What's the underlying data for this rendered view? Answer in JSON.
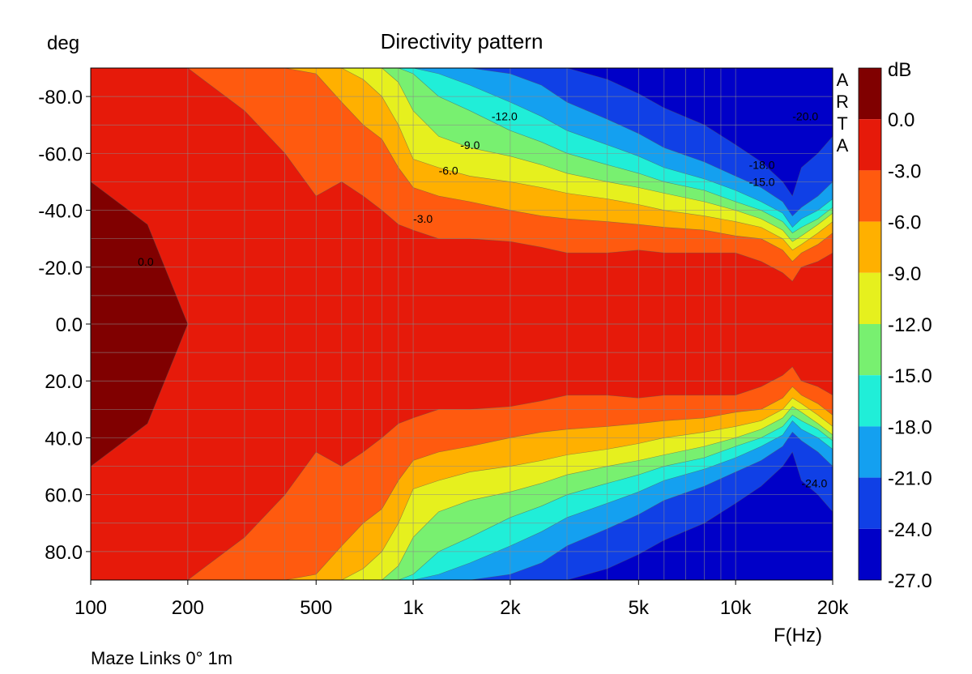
{
  "chart_data": {
    "type": "heatmap",
    "title": "Directivity pattern",
    "xlabel": "F(Hz)",
    "ylabel": "deg",
    "x_scale": "log",
    "xlim": [
      100,
      20000
    ],
    "ylim": [
      -90,
      90
    ],
    "x_ticks": [
      {
        "value": 100,
        "label": "100"
      },
      {
        "value": 200,
        "label": "200"
      },
      {
        "value": 500,
        "label": "500"
      },
      {
        "value": 1000,
        "label": "1k"
      },
      {
        "value": 2000,
        "label": "2k"
      },
      {
        "value": 5000,
        "label": "5k"
      },
      {
        "value": 10000,
        "label": "10k"
      },
      {
        "value": 20000,
        "label": "20k"
      }
    ],
    "y_ticks": [
      {
        "value": -80,
        "label": "-80.0"
      },
      {
        "value": -60,
        "label": "-60.0"
      },
      {
        "value": -40,
        "label": "-40.0"
      },
      {
        "value": -20,
        "label": "-20.0"
      },
      {
        "value": 0,
        "label": "0.0"
      },
      {
        "value": 20,
        "label": "20.0"
      },
      {
        "value": 40,
        "label": "40.0"
      },
      {
        "value": 60,
        "label": "60.0"
      },
      {
        "value": 80,
        "label": "80.0"
      }
    ],
    "grid": true,
    "colorbar": {
      "unit": "dB",
      "bands": [
        {
          "label": "0.0",
          "color": "#800000"
        },
        {
          "label": "-3.0",
          "color": "#e61a0a"
        },
        {
          "label": "-6.0",
          "color": "#ff5a0f"
        },
        {
          "label": "-9.0",
          "color": "#ffb000"
        },
        {
          "label": "-12.0",
          "color": "#e6f01e"
        },
        {
          "label": "-15.0",
          "color": "#78f070"
        },
        {
          "label": "-18.0",
          "color": "#20eed8"
        },
        {
          "label": "-21.0",
          "color": "#14a0f0"
        },
        {
          "label": "-24.0",
          "color": "#1040e6"
        },
        {
          "label": "-27.0",
          "color": "#0000c8"
        }
      ]
    },
    "band_levels_db": [
      0,
      -3,
      -6,
      -9,
      -12,
      -15,
      -18,
      -21,
      -24,
      -27
    ],
    "edge_angle_deg": {
      "freq_hz": [
        100,
        150,
        200,
        300,
        400,
        500,
        600,
        700,
        800,
        900,
        1000,
        1200,
        1500,
        2000,
        2500,
        3000,
        4000,
        5000,
        6000,
        8000,
        10000,
        12000,
        14000,
        15000,
        16000,
        18000,
        20000
      ],
      "edge_-0": [
        50,
        35,
        0,
        0,
        0,
        0,
        0,
        0,
        0,
        0,
        0,
        0,
        0,
        0,
        0,
        0,
        0,
        0,
        0,
        0,
        0,
        0,
        0,
        0,
        0,
        0,
        0
      ],
      "edge_-3": [
        90,
        90,
        90,
        75,
        60,
        45,
        50,
        45,
        40,
        35,
        33,
        30,
        30,
        29,
        27,
        25,
        25,
        26,
        25,
        25,
        25,
        22,
        18,
        15,
        20,
        22,
        25
      ],
      "edge_-6": [
        90,
        90,
        90,
        90,
        90,
        88,
        78,
        70,
        65,
        55,
        48,
        45,
        43,
        40,
        38,
        37,
        36,
        35,
        34,
        33,
        31,
        30,
        26,
        22,
        25,
        28,
        32
      ],
      "edge_-9": [
        90,
        90,
        90,
        90,
        90,
        90,
        90,
        86,
        80,
        70,
        58,
        55,
        52,
        50,
        48,
        46,
        44,
        42,
        40,
        38,
        36,
        34,
        30,
        26,
        28,
        32,
        36
      ],
      "edge_-12": [
        90,
        90,
        90,
        90,
        90,
        90,
        90,
        90,
        90,
        85,
        75,
        66,
        62,
        59,
        56,
        53,
        50,
        48,
        46,
        43,
        40,
        37,
        33,
        29,
        31,
        35,
        39
      ],
      "edge_-15": [
        90,
        90,
        90,
        90,
        90,
        90,
        90,
        90,
        90,
        90,
        88,
        80,
        75,
        68,
        64,
        60,
        56,
        53,
        50,
        47,
        43,
        40,
        36,
        32,
        34,
        37,
        41
      ],
      "edge_-18": [
        90,
        90,
        90,
        90,
        90,
        90,
        90,
        90,
        90,
        90,
        90,
        88,
        84,
        78,
        73,
        68,
        63,
        59,
        55,
        51,
        47,
        43,
        39,
        34,
        37,
        40,
        44
      ],
      "edge_-21": [
        90,
        90,
        90,
        90,
        90,
        90,
        90,
        90,
        90,
        90,
        90,
        90,
        90,
        88,
        84,
        78,
        72,
        67,
        62,
        57,
        52,
        48,
        43,
        38,
        41,
        45,
        50
      ],
      "edge_-24": [
        90,
        90,
        90,
        90,
        90,
        90,
        90,
        90,
        90,
        90,
        90,
        90,
        90,
        90,
        90,
        90,
        86,
        81,
        76,
        70,
        63,
        57,
        50,
        45,
        55,
        60,
        66
      ]
    },
    "contour_labels": [
      {
        "text": "0.0",
        "freq_hz": 140,
        "angle_deg": -22
      },
      {
        "text": "-3.0",
        "freq_hz": 1000,
        "angle_deg": -37
      },
      {
        "text": "-6.0",
        "freq_hz": 1200,
        "angle_deg": -54
      },
      {
        "text": "-9.0",
        "freq_hz": 1400,
        "angle_deg": -63
      },
      {
        "text": "-12.0",
        "freq_hz": 1750,
        "angle_deg": -73
      },
      {
        "text": "-18.0",
        "freq_hz": 11000,
        "angle_deg": -56
      },
      {
        "text": "-15.0",
        "freq_hz": 11000,
        "angle_deg": -50
      },
      {
        "text": "-20.0",
        "freq_hz": 15000,
        "angle_deg": -73
      },
      {
        "text": "-24.0",
        "freq_hz": 16000,
        "angle_deg": 56
      }
    ]
  },
  "side_label": [
    "A",
    "R",
    "T",
    "A"
  ],
  "footer": "Maze Links 0° 1m"
}
